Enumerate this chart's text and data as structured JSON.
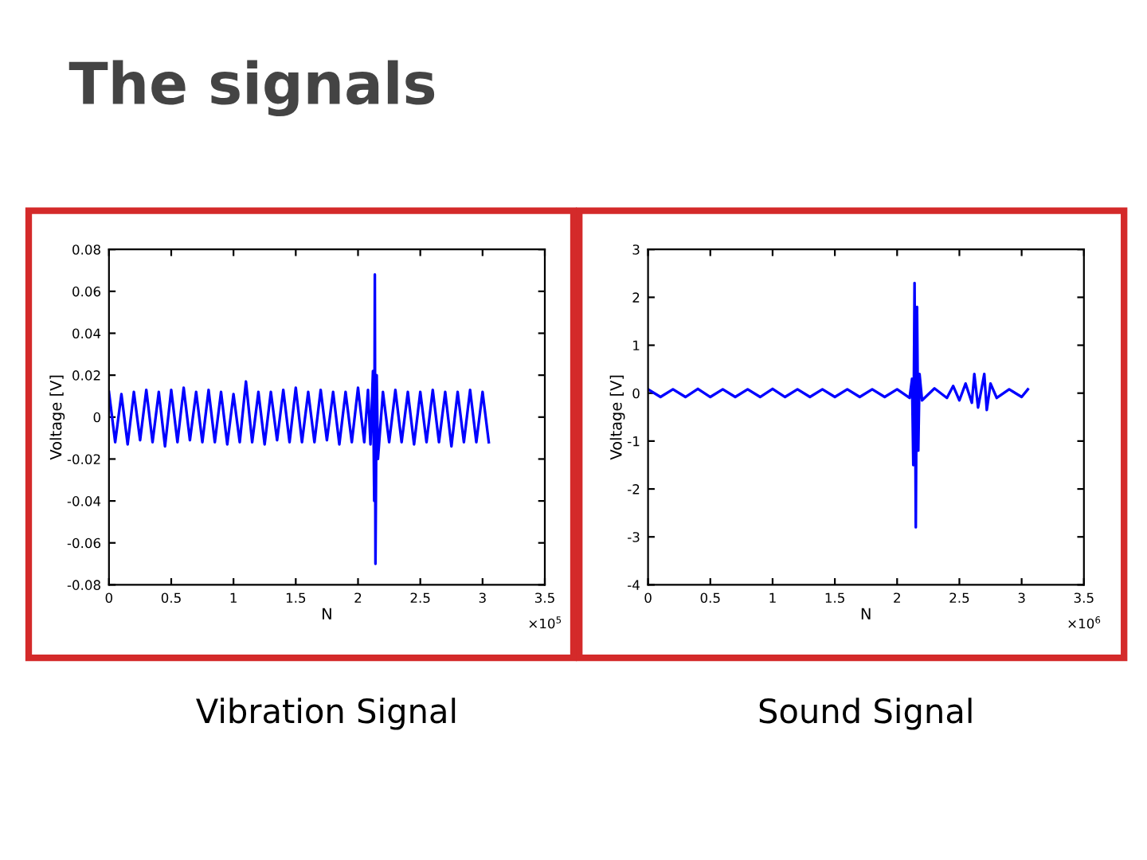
{
  "chart_data": [
    {
      "type": "other",
      "title": "The signals"
    },
    {
      "type": "line",
      "title": "Vibration Signal",
      "xlabel": "N",
      "ylabel": "Voltage [V]",
      "annotations": [
        "×10$^{5}$"
      ],
      "xlim": [
        0,
        3.5
      ],
      "ylim": [
        -0.08,
        0.08
      ],
      "xticks": [
        0,
        0.5,
        1,
        1.5,
        2,
        2.5,
        3,
        3.5
      ],
      "yticks": [
        -0.08,
        -0.06,
        -0.04,
        -0.02,
        0,
        0.02,
        0.04,
        0.06,
        0.08
      ],
      "grid": false,
      "legend": false,
      "series": [
        {
          "color": "#0000ff",
          "x": [
            0,
            0.05,
            0.1,
            0.15,
            0.2,
            0.25,
            0.3,
            0.35,
            0.4,
            0.45,
            0.5,
            0.55,
            0.6,
            0.65,
            0.7,
            0.75,
            0.8,
            0.85,
            0.9,
            0.95,
            1.0,
            1.05,
            1.1,
            1.15,
            1.2,
            1.25,
            1.3,
            1.35,
            1.4,
            1.45,
            1.5,
            1.55,
            1.6,
            1.65,
            1.7,
            1.75,
            1.8,
            1.85,
            1.9,
            1.95,
            2.0,
            2.05,
            2.08,
            2.1,
            2.12,
            2.13,
            2.135,
            2.14,
            2.15,
            2.16,
            2.2,
            2.25,
            2.3,
            2.35,
            2.4,
            2.45,
            2.5,
            2.55,
            2.6,
            2.65,
            2.7,
            2.75,
            2.8,
            2.85,
            2.9,
            2.95,
            3.0,
            3.05
          ],
          "values": [
            0.012,
            -0.012,
            0.011,
            -0.013,
            0.012,
            -0.011,
            0.013,
            -0.012,
            0.012,
            -0.014,
            0.013,
            -0.012,
            0.014,
            -0.011,
            0.012,
            -0.012,
            0.013,
            -0.012,
            0.012,
            -0.013,
            0.011,
            -0.012,
            0.017,
            -0.012,
            0.012,
            -0.013,
            0.012,
            -0.011,
            0.013,
            -0.012,
            0.014,
            -0.012,
            0.012,
            -0.012,
            0.013,
            -0.011,
            0.012,
            -0.013,
            0.012,
            -0.012,
            0.014,
            -0.012,
            0.013,
            -0.013,
            0.022,
            -0.04,
            0.068,
            -0.07,
            0.02,
            -0.02,
            0.012,
            -0.012,
            0.013,
            -0.012,
            0.012,
            -0.013,
            0.012,
            -0.012,
            0.013,
            -0.012,
            0.012,
            -0.014,
            0.012,
            -0.012,
            0.013,
            -0.012,
            0.012,
            -0.012
          ]
        }
      ]
    },
    {
      "type": "line",
      "title": "Sound Signal",
      "xlabel": "N",
      "ylabel": "Voltage [V]",
      "annotations": [
        "×10$^{6}$"
      ],
      "xlim": [
        0,
        3.5
      ],
      "ylim": [
        -4,
        3
      ],
      "xticks": [
        0,
        0.5,
        1,
        1.5,
        2,
        2.5,
        3,
        3.5
      ],
      "yticks": [
        -4,
        -3,
        -2,
        -1,
        0,
        1,
        2,
        3
      ],
      "grid": false,
      "legend": false,
      "series": [
        {
          "color": "#0000ff",
          "x": [
            0,
            0.1,
            0.2,
            0.3,
            0.4,
            0.5,
            0.6,
            0.7,
            0.8,
            0.9,
            1.0,
            1.1,
            1.2,
            1.3,
            1.4,
            1.5,
            1.6,
            1.7,
            1.8,
            1.9,
            2.0,
            2.1,
            2.12,
            2.13,
            2.14,
            2.15,
            2.16,
            2.17,
            2.18,
            2.2,
            2.3,
            2.4,
            2.45,
            2.5,
            2.55,
            2.6,
            2.62,
            2.65,
            2.7,
            2.72,
            2.75,
            2.8,
            2.9,
            3.0,
            3.05
          ],
          "values": [
            0.08,
            -0.08,
            0.08,
            -0.08,
            0.09,
            -0.08,
            0.08,
            -0.08,
            0.08,
            -0.08,
            0.09,
            -0.08,
            0.08,
            -0.08,
            0.08,
            -0.08,
            0.08,
            -0.08,
            0.08,
            -0.08,
            0.08,
            -0.1,
            0.3,
            -1.5,
            2.3,
            -2.8,
            1.8,
            -1.2,
            0.4,
            -0.15,
            0.1,
            -0.1,
            0.15,
            -0.15,
            0.2,
            -0.2,
            0.4,
            -0.3,
            0.4,
            -0.35,
            0.2,
            -0.1,
            0.08,
            -0.08,
            0.08
          ]
        }
      ]
    }
  ]
}
